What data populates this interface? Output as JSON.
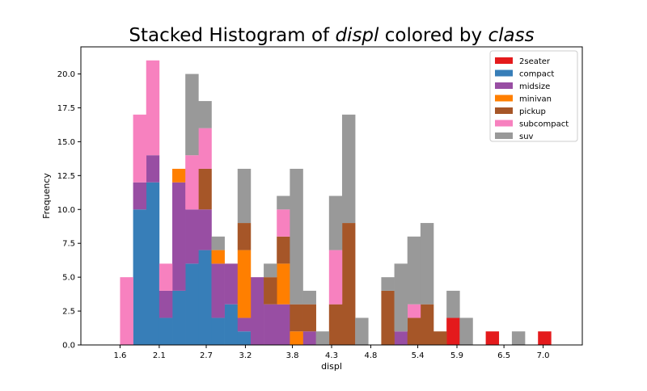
{
  "chart_data": {
    "type": "bar",
    "stacked": true,
    "title_parts": [
      {
        "text": "Stacked Histogram of ",
        "italic": false
      },
      {
        "text": "displ",
        "italic": true
      },
      {
        "text": " colored by ",
        "italic": false
      },
      {
        "text": "class",
        "italic": true
      }
    ],
    "xlabel": "displ",
    "ylabel": "Frequency",
    "xlim": [
      1.1,
      7.5
    ],
    "ylim": [
      0,
      22
    ],
    "xticks": [
      "1.6",
      "2.1",
      "2.7",
      "3.2",
      "3.8",
      "4.3",
      "4.8",
      "5.4",
      "5.9",
      "6.5",
      "7.0"
    ],
    "yticks": [
      "0.0",
      "2.5",
      "5.0",
      "7.5",
      "10.0",
      "12.5",
      "15.0",
      "17.5",
      "20.0"
    ],
    "legend_position": "top-right",
    "grid": false,
    "bin_start": 1.6,
    "bin_width": 0.1667,
    "series": [
      {
        "name": "2seater",
        "color": "#e41a1c",
        "values": [
          0,
          0,
          0,
          0,
          0,
          0,
          0,
          0,
          0,
          0,
          0,
          0,
          0,
          0,
          0,
          0,
          0,
          0,
          0,
          0,
          0,
          0,
          0,
          0,
          0,
          2,
          0,
          0,
          1,
          0,
          0,
          0,
          1
        ]
      },
      {
        "name": "compact",
        "color": "#377eb8",
        "values": [
          0,
          10,
          12,
          2,
          4,
          6,
          7,
          2,
          3,
          1,
          0,
          0,
          0,
          0,
          0,
          0,
          0,
          0,
          0,
          0,
          0,
          0,
          0,
          0,
          0,
          0,
          0,
          0,
          0,
          0,
          0,
          0,
          0
        ]
      },
      {
        "name": "midsize",
        "color": "#984ea3",
        "values": [
          0,
          2,
          2,
          2,
          8,
          4,
          3,
          4,
          3,
          1,
          5,
          3,
          3,
          0,
          1,
          0,
          0,
          0,
          0,
          0,
          0,
          1,
          0,
          0,
          0,
          0,
          0,
          0,
          0,
          0,
          0,
          0,
          0
        ]
      },
      {
        "name": "minivan",
        "color": "#ff7f00",
        "values": [
          0,
          0,
          0,
          0,
          1,
          0,
          0,
          1,
          0,
          5,
          0,
          0,
          3,
          1,
          0,
          0,
          0,
          0,
          0,
          0,
          0,
          0,
          0,
          0,
          0,
          0,
          0,
          0,
          0,
          0,
          0,
          0,
          0
        ]
      },
      {
        "name": "pickup",
        "color": "#a65628",
        "values": [
          0,
          0,
          0,
          0,
          0,
          0,
          3,
          0,
          0,
          2,
          0,
          2,
          2,
          2,
          2,
          0,
          3,
          9,
          0,
          0,
          4,
          0,
          2,
          3,
          1,
          0,
          0,
          0,
          0,
          0,
          0,
          0,
          0
        ]
      },
      {
        "name": "subcompact",
        "color": "#f781bf",
        "values": [
          5,
          5,
          7,
          2,
          0,
          4,
          3,
          0,
          0,
          0,
          0,
          0,
          2,
          0,
          0,
          0,
          4,
          0,
          0,
          0,
          0,
          0,
          1,
          0,
          0,
          0,
          0,
          0,
          0,
          0,
          0,
          0,
          0
        ]
      },
      {
        "name": "suv",
        "color": "#999999",
        "values": [
          0,
          0,
          0,
          0,
          0,
          6,
          2,
          1,
          0,
          4,
          0,
          1,
          1,
          10,
          1,
          1,
          4,
          8,
          2,
          0,
          1,
          5,
          5,
          6,
          0,
          2,
          2,
          0,
          0,
          0,
          1,
          0,
          0
        ]
      }
    ]
  }
}
